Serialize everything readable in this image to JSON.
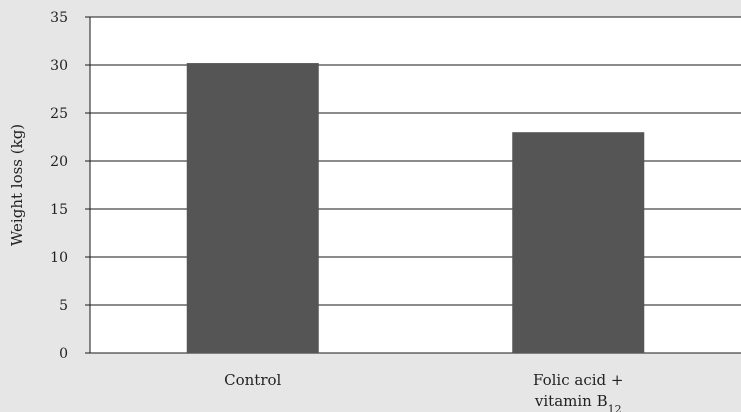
{
  "chart_data": {
    "type": "bar",
    "title": "",
    "xlabel": "",
    "ylabel": "Weight loss (kg)",
    "ylim": [
      0,
      35
    ],
    "yticks": [
      0,
      5,
      10,
      15,
      20,
      25,
      30,
      35
    ],
    "grid": true,
    "categories": [
      {
        "label": "Control",
        "sub": ""
      },
      {
        "label": "Folic acid +",
        "line2": "vitamin B",
        "sub": "12"
      }
    ],
    "values": [
      30.2,
      23.0
    ],
    "colors": {
      "bar": "#555555",
      "plot_bg": "#ffffff",
      "page_bg": "#e6e6e6",
      "grid": "#1a1a1a"
    }
  }
}
